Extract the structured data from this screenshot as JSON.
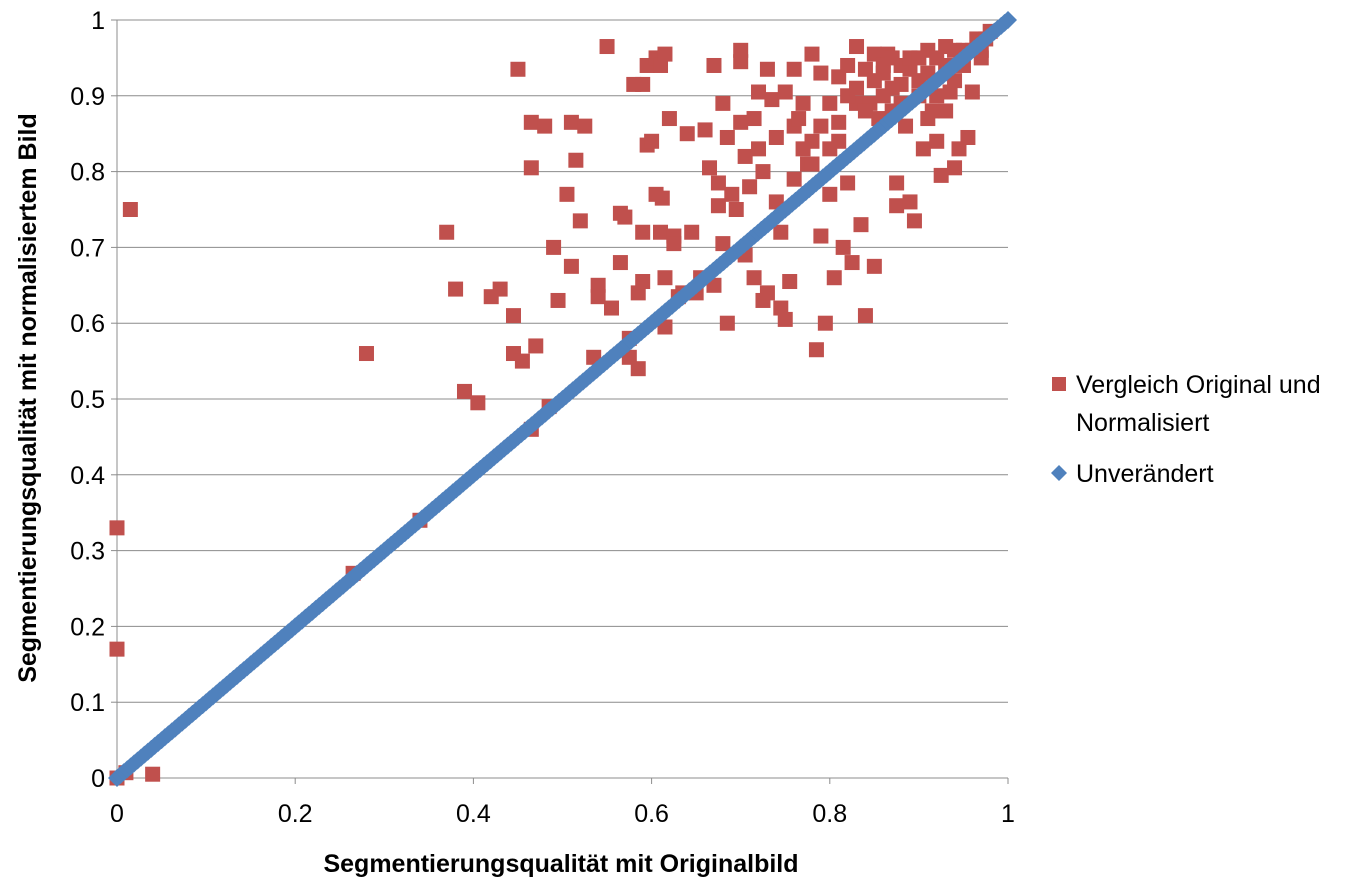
{
  "chart_data": {
    "type": "scatter",
    "title": "",
    "xlabel": "Segmentierungsqualität mit Originalbild",
    "ylabel": "Segmentierungsqualität mit normalisiertem Bild",
    "xlim": [
      0,
      1
    ],
    "ylim": [
      0,
      1
    ],
    "x_ticks": [
      "0",
      "0.2",
      "0.4",
      "0.6",
      "0.8",
      "1"
    ],
    "y_ticks": [
      "0",
      "0.1",
      "0.2",
      "0.3",
      "0.4",
      "0.5",
      "0.6",
      "0.7",
      "0.8",
      "0.9",
      "1"
    ],
    "grid": "horizontal",
    "legend_position": "right",
    "series": [
      {
        "name": "Vergleich Original und Normalisiert",
        "legend_lines": [
          "Vergleich Original und",
          "Normalisiert"
        ],
        "marker": "square",
        "color": "#C0504D",
        "points": [
          [
            0.0,
            0.0
          ],
          [
            0.0,
            0.17
          ],
          [
            0.0,
            0.33
          ],
          [
            0.015,
            0.75
          ],
          [
            0.04,
            0.005
          ],
          [
            0.01,
            0.007
          ],
          [
            0.265,
            0.27
          ],
          [
            0.28,
            0.56
          ],
          [
            0.34,
            0.34
          ],
          [
            0.37,
            0.72
          ],
          [
            0.38,
            0.645
          ],
          [
            0.39,
            0.51
          ],
          [
            0.405,
            0.495
          ],
          [
            0.42,
            0.635
          ],
          [
            0.43,
            0.645
          ],
          [
            0.445,
            0.61
          ],
          [
            0.445,
            0.56
          ],
          [
            0.45,
            0.935
          ],
          [
            0.455,
            0.55
          ],
          [
            0.465,
            0.46
          ],
          [
            0.465,
            0.805
          ],
          [
            0.465,
            0.865
          ],
          [
            0.47,
            0.57
          ],
          [
            0.48,
            0.86
          ],
          [
            0.485,
            0.49
          ],
          [
            0.49,
            0.7
          ],
          [
            0.495,
            0.63
          ],
          [
            0.505,
            0.77
          ],
          [
            0.51,
            0.675
          ],
          [
            0.51,
            0.865
          ],
          [
            0.515,
            0.815
          ],
          [
            0.52,
            0.735
          ],
          [
            0.525,
            0.86
          ],
          [
            0.535,
            0.555
          ],
          [
            0.54,
            0.65
          ],
          [
            0.54,
            0.635
          ],
          [
            0.55,
            0.965
          ],
          [
            0.555,
            0.62
          ],
          [
            0.565,
            0.68
          ],
          [
            0.565,
            0.745
          ],
          [
            0.57,
            0.74
          ],
          [
            0.575,
            0.555
          ],
          [
            0.575,
            0.58
          ],
          [
            0.58,
            0.915
          ],
          [
            0.585,
            0.64
          ],
          [
            0.585,
            0.54
          ],
          [
            0.59,
            0.72
          ],
          [
            0.59,
            0.655
          ],
          [
            0.59,
            0.915
          ],
          [
            0.595,
            0.94
          ],
          [
            0.595,
            0.835
          ],
          [
            0.6,
            0.84
          ],
          [
            0.605,
            0.95
          ],
          [
            0.605,
            0.77
          ],
          [
            0.61,
            0.94
          ],
          [
            0.61,
            0.72
          ],
          [
            0.612,
            0.765
          ],
          [
            0.615,
            0.595
          ],
          [
            0.615,
            0.955
          ],
          [
            0.615,
            0.66
          ],
          [
            0.62,
            0.87
          ],
          [
            0.625,
            0.715
          ],
          [
            0.625,
            0.705
          ],
          [
            0.63,
            0.635
          ],
          [
            0.635,
            0.64
          ],
          [
            0.64,
            0.85
          ],
          [
            0.645,
            0.72
          ],
          [
            0.65,
            0.64
          ],
          [
            0.655,
            0.66
          ],
          [
            0.66,
            0.855
          ],
          [
            0.665,
            0.805
          ],
          [
            0.67,
            0.65
          ],
          [
            0.67,
            0.94
          ],
          [
            0.675,
            0.785
          ],
          [
            0.675,
            0.755
          ],
          [
            0.68,
            0.89
          ],
          [
            0.68,
            0.705
          ],
          [
            0.685,
            0.845
          ],
          [
            0.685,
            0.6
          ],
          [
            0.69,
            0.77
          ],
          [
            0.695,
            0.75
          ],
          [
            0.7,
            0.96
          ],
          [
            0.7,
            0.945
          ],
          [
            0.7,
            0.865
          ],
          [
            0.705,
            0.82
          ],
          [
            0.705,
            0.69
          ],
          [
            0.71,
            0.78
          ],
          [
            0.715,
            0.87
          ],
          [
            0.715,
            0.66
          ],
          [
            0.72,
            0.905
          ],
          [
            0.72,
            0.83
          ],
          [
            0.725,
            0.8
          ],
          [
            0.725,
            0.63
          ],
          [
            0.73,
            0.935
          ],
          [
            0.73,
            0.64
          ],
          [
            0.735,
            0.895
          ],
          [
            0.74,
            0.845
          ],
          [
            0.74,
            0.76
          ],
          [
            0.745,
            0.62
          ],
          [
            0.745,
            0.72
          ],
          [
            0.75,
            0.905
          ],
          [
            0.75,
            0.605
          ],
          [
            0.755,
            0.655
          ],
          [
            0.76,
            0.935
          ],
          [
            0.76,
            0.86
          ],
          [
            0.765,
            0.87
          ],
          [
            0.77,
            0.89
          ],
          [
            0.775,
            0.81
          ],
          [
            0.78,
            0.955
          ],
          [
            0.78,
            0.84
          ],
          [
            0.785,
            0.565
          ],
          [
            0.79,
            0.93
          ],
          [
            0.79,
            0.715
          ],
          [
            0.795,
            0.6
          ],
          [
            0.8,
            0.89
          ],
          [
            0.8,
            0.77
          ],
          [
            0.805,
            0.66
          ],
          [
            0.81,
            0.925
          ],
          [
            0.81,
            0.865
          ],
          [
            0.815,
            0.7
          ],
          [
            0.82,
            0.94
          ],
          [
            0.82,
            0.785
          ],
          [
            0.825,
            0.68
          ],
          [
            0.83,
            0.965
          ],
          [
            0.83,
            0.89
          ],
          [
            0.835,
            0.73
          ],
          [
            0.84,
            0.935
          ],
          [
            0.84,
            0.61
          ],
          [
            0.845,
            0.89
          ],
          [
            0.85,
            0.955
          ],
          [
            0.85,
            0.675
          ],
          [
            0.855,
            0.87
          ],
          [
            0.86,
            0.93
          ],
          [
            0.865,
            0.955
          ],
          [
            0.87,
            0.88
          ],
          [
            0.875,
            0.785
          ],
          [
            0.875,
            0.755
          ],
          [
            0.88,
            0.915
          ],
          [
            0.885,
            0.86
          ],
          [
            0.89,
            0.935
          ],
          [
            0.89,
            0.76
          ],
          [
            0.895,
            0.735
          ],
          [
            0.9,
            0.9
          ],
          [
            0.905,
            0.83
          ],
          [
            0.91,
            0.96
          ],
          [
            0.915,
            0.88
          ],
          [
            0.92,
            0.84
          ],
          [
            0.925,
            0.795
          ],
          [
            0.93,
            0.965
          ],
          [
            0.935,
            0.905
          ],
          [
            0.94,
            0.805
          ],
          [
            0.945,
            0.83
          ],
          [
            0.95,
            0.96
          ],
          [
            0.955,
            0.845
          ],
          [
            0.96,
            0.905
          ],
          [
            0.965,
            0.975
          ],
          [
            0.97,
            0.95
          ],
          [
            0.975,
            0.975
          ],
          [
            0.98,
            0.985
          ],
          [
            0.86,
            0.9
          ],
          [
            0.87,
            0.91
          ],
          [
            0.88,
            0.94
          ],
          [
            0.89,
            0.95
          ],
          [
            0.9,
            0.95
          ],
          [
            0.91,
            0.93
          ],
          [
            0.92,
            0.95
          ],
          [
            0.93,
            0.94
          ],
          [
            0.94,
            0.96
          ],
          [
            0.85,
            0.92
          ],
          [
            0.86,
            0.94
          ],
          [
            0.87,
            0.95
          ],
          [
            0.82,
            0.9
          ],
          [
            0.83,
            0.91
          ],
          [
            0.84,
            0.88
          ],
          [
            0.88,
            0.89
          ],
          [
            0.9,
            0.92
          ],
          [
            0.95,
            0.94
          ],
          [
            0.8,
            0.83
          ],
          [
            0.81,
            0.84
          ],
          [
            0.78,
            0.81
          ],
          [
            0.76,
            0.79
          ],
          [
            0.79,
            0.86
          ],
          [
            0.77,
            0.83
          ],
          [
            0.91,
            0.87
          ],
          [
            0.92,
            0.9
          ],
          [
            0.93,
            0.88
          ],
          [
            0.94,
            0.92
          ],
          [
            0.96,
            0.96
          ],
          [
            0.97,
            0.96
          ]
        ]
      },
      {
        "name": "Unverändert",
        "legend_lines": [
          "Unverändert"
        ],
        "marker": "diamond",
        "color": "#4F81BD",
        "points": "identity-line"
      }
    ]
  }
}
